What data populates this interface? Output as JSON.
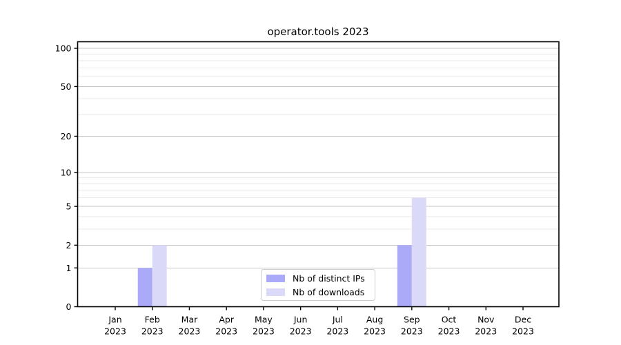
{
  "title": "operator.tools 2023",
  "colors": {
    "ips": "#aaaaf8",
    "downloads": "#dadaf8",
    "grid_major": "#c6c6c6",
    "grid_minor": "#e9e9e9",
    "axis": "#000000",
    "background": "#ffffff",
    "text": "#000000"
  },
  "legend": {
    "items": [
      {
        "label": "Nb of distinct IPs",
        "color_key": "ips"
      },
      {
        "label": "Nb of downloads",
        "color_key": "downloads"
      }
    ]
  },
  "chart_data": {
    "type": "bar",
    "title": "operator.tools 2023",
    "categories": [
      "Jan 2023",
      "Feb 2023",
      "Mar 2023",
      "Apr 2023",
      "May 2023",
      "Jun 2023",
      "Jul 2023",
      "Aug 2023",
      "Sep 2023",
      "Oct 2023",
      "Nov 2023",
      "Dec 2023"
    ],
    "x_months": [
      "Jan",
      "Feb",
      "Mar",
      "Apr",
      "May",
      "Jun",
      "Jul",
      "Aug",
      "Sep",
      "Oct",
      "Nov",
      "Dec"
    ],
    "x_year": "2023",
    "series": [
      {
        "name": "Nb of distinct IPs",
        "color_key": "ips",
        "values": [
          0,
          1,
          0,
          0,
          0,
          0,
          0,
          0,
          2,
          0,
          0,
          0
        ]
      },
      {
        "name": "Nb of downloads",
        "color_key": "downloads",
        "values": [
          0,
          2,
          0,
          0,
          0,
          0,
          0,
          0,
          6,
          0,
          0,
          0
        ]
      }
    ],
    "xlabel": "",
    "ylabel": "",
    "y_scale": "log1p",
    "y_major_ticks": [
      0,
      1,
      2,
      5,
      10,
      20,
      50,
      100
    ],
    "y_minor_ticks": [
      3,
      4,
      6,
      7,
      8,
      9,
      30,
      40,
      60,
      70,
      80,
      90
    ],
    "ylim": [
      0,
      113
    ],
    "grid": true,
    "legend_position": "bottom-center"
  }
}
